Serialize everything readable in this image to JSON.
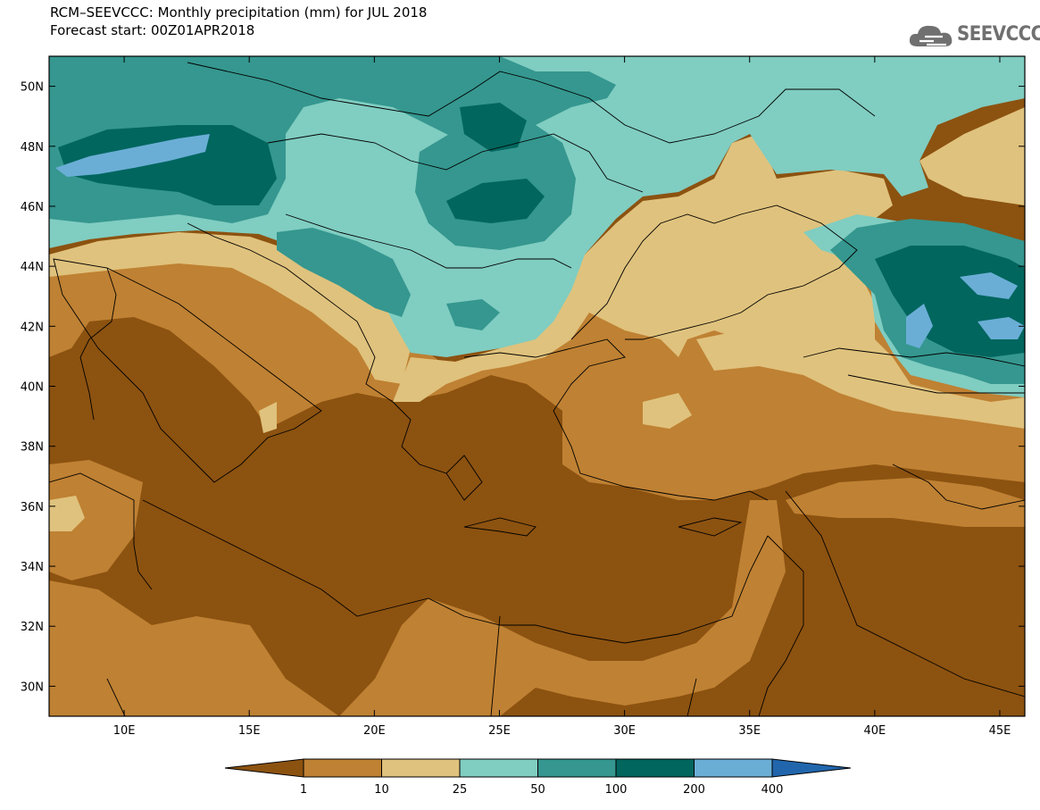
{
  "title": {
    "line1": "RCM–SEEVCCC: Monthly precipitation (mm) for JUL 2018",
    "line2": "Forecast start: 00Z01APR2018"
  },
  "logo": {
    "text": "SEEVCCC",
    "icon": "cloud-icon"
  },
  "map": {
    "lat_ticks": [
      "50N",
      "48N",
      "46N",
      "44N",
      "42N",
      "40N",
      "38N",
      "36N",
      "34N",
      "32N",
      "30N"
    ],
    "lon_ticks": [
      "10E",
      "15E",
      "20E",
      "25E",
      "30E",
      "35E",
      "40E",
      "45E"
    ]
  },
  "legend": {
    "colors": [
      "#8c5210",
      "#bf8133",
      "#dfc27d",
      "#80cdc1",
      "#35978f",
      "#01665e",
      "#6aaed6",
      "#2166ac"
    ],
    "labels": [
      "1",
      "10",
      "25",
      "50",
      "100",
      "200",
      "400"
    ]
  }
}
